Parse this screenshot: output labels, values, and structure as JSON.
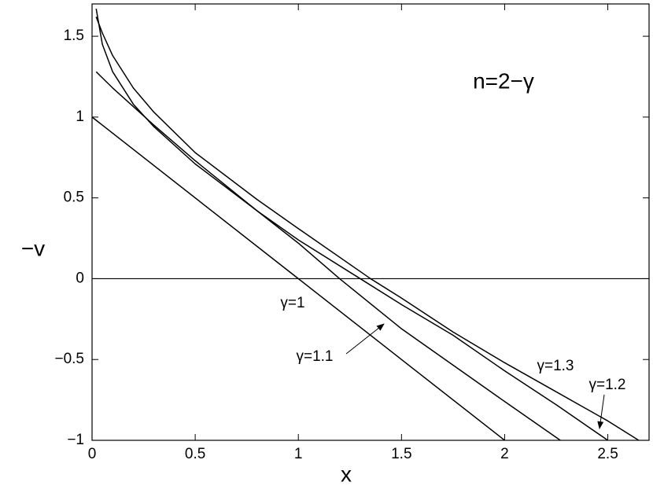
{
  "chart_data": {
    "type": "line",
    "annotation": "n=2−γ",
    "x_label": "x",
    "y_label": "−v",
    "xlim": [
      0,
      2.7
    ],
    "ylim": [
      -1,
      1.7
    ],
    "xticks": [
      0,
      0.5,
      1,
      1.5,
      2,
      2.5
    ],
    "yticks": [
      {
        "value": -1,
        "label": "−1"
      },
      {
        "value": -0.5,
        "label": "−0.5"
      },
      0,
      0.5,
      1,
      1.5
    ],
    "hline": 0,
    "series": [
      {
        "name": "γ=1",
        "color": "#000000",
        "x": [
          0,
          2
        ],
        "values": [
          1,
          -1
        ]
      },
      {
        "name": "γ=1.1",
        "color": "#000000",
        "x": [
          0.02,
          0.1,
          0.3,
          0.5,
          0.8,
          1.0,
          1.2,
          1.5,
          2.0,
          2.27
        ],
        "values": [
          1.28,
          1.18,
          0.95,
          0.73,
          0.42,
          0.22,
          0,
          -0.31,
          -0.76,
          -1
        ]
      },
      {
        "name": "γ=1.3",
        "color": "#000000",
        "x": [
          0.02,
          0.05,
          0.1,
          0.2,
          0.3,
          0.5,
          0.8,
          1.0,
          1.35,
          1.5,
          1.75,
          2.0,
          2.25,
          2.5,
          2.65
        ],
        "values": [
          1.62,
          1.52,
          1.38,
          1.18,
          1.03,
          0.78,
          0.49,
          0.31,
          0,
          -0.12,
          -0.33,
          -0.52,
          -0.7,
          -0.88,
          -1
        ]
      },
      {
        "name": "γ=1.2",
        "color": "#000000",
        "x": [
          0.02,
          0.05,
          0.1,
          0.2,
          0.3,
          0.5,
          0.8,
          1.0,
          1.3,
          1.5,
          1.75,
          2.0,
          2.25,
          2.5
        ],
        "values": [
          1.67,
          1.45,
          1.28,
          1.08,
          0.94,
          0.71,
          0.42,
          0.24,
          0,
          -0.16,
          -0.35,
          -0.57,
          -0.78,
          -1
        ]
      }
    ]
  }
}
